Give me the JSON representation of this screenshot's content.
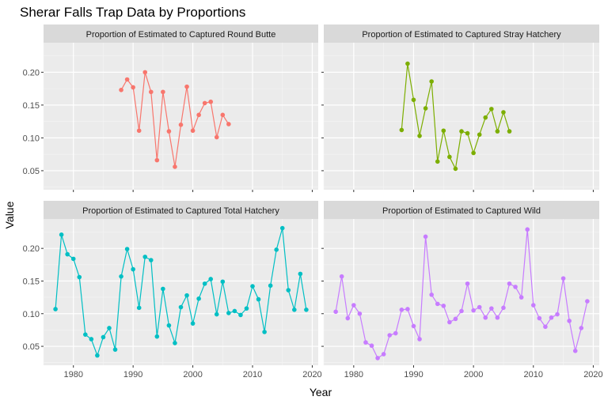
{
  "chart_data": {
    "type": "line",
    "title": "Sherar Falls Trap Data by Proportions",
    "xlabel": "Year",
    "ylabel": "Value",
    "xlim": [
      1975,
      2021
    ],
    "ylim": [
      0.021,
      0.245
    ],
    "x_ticks": [
      1980,
      1990,
      2000,
      2010,
      2020
    ],
    "y_ticks": [
      0.05,
      0.1,
      0.15,
      0.2
    ],
    "y_tick_labels": [
      "0.05",
      "0.10",
      "0.15",
      "0.20"
    ],
    "layout": "facet_wrap 2x2",
    "panel_background": "#ebebeb",
    "strip_background": "#d9d9d9",
    "grid": true,
    "series": [
      {
        "name": "Proportion of Estimated to Captured Round Butte",
        "color": "#F8766D",
        "x": [
          1988,
          1989,
          1990,
          1991,
          1992,
          1993,
          1994,
          1995,
          1996,
          1997,
          1998,
          1999,
          2000,
          2001,
          2002,
          2003,
          2004,
          2005,
          2006
        ],
        "values": [
          0.173,
          0.189,
          0.177,
          0.111,
          0.2,
          0.17,
          0.066,
          0.17,
          0.11,
          0.056,
          0.12,
          0.178,
          0.111,
          0.135,
          0.153,
          0.155,
          0.101,
          0.135,
          0.121
        ]
      },
      {
        "name": "Proportion of Estimated to Captured Stray Hatchery",
        "color": "#7CAE00",
        "x": [
          1988,
          1989,
          1990,
          1991,
          1992,
          1993,
          1994,
          1995,
          1996,
          1997,
          1998,
          1999,
          2000,
          2001,
          2002,
          2003,
          2004,
          2005,
          2006
        ],
        "values": [
          0.112,
          0.213,
          0.158,
          0.103,
          0.145,
          0.186,
          0.064,
          0.111,
          0.071,
          0.053,
          0.11,
          0.107,
          0.077,
          0.105,
          0.131,
          0.144,
          0.11,
          0.139,
          0.11
        ]
      },
      {
        "name": "Proportion of Estimated to Captured Total Hatchery",
        "color": "#00BFC4",
        "x": [
          1977,
          1978,
          1979,
          1980,
          1981,
          1982,
          1983,
          1984,
          1985,
          1986,
          1987,
          1988,
          1989,
          1990,
          1991,
          1992,
          1993,
          1994,
          1995,
          1996,
          1997,
          1998,
          1999,
          2000,
          2001,
          2002,
          2003,
          2004,
          2005,
          2006,
          2007,
          2008,
          2009,
          2010,
          2011,
          2012,
          2013,
          2014,
          2015,
          2016,
          2017,
          2018,
          2019
        ],
        "values": [
          0.107,
          0.221,
          0.191,
          0.184,
          0.156,
          0.068,
          0.061,
          0.036,
          0.064,
          0.078,
          0.045,
          0.157,
          0.199,
          0.168,
          0.109,
          0.187,
          0.182,
          0.065,
          0.138,
          0.082,
          0.055,
          0.11,
          0.128,
          0.085,
          0.123,
          0.146,
          0.153,
          0.099,
          0.149,
          0.101,
          0.104,
          0.098,
          0.108,
          0.142,
          0.122,
          0.072,
          0.143,
          0.198,
          0.231,
          0.136,
          0.106,
          0.161,
          0.106
        ]
      },
      {
        "name": "Proportion of Estimated to Captured Wild",
        "color": "#C77CFF",
        "x": [
          1977,
          1978,
          1979,
          1980,
          1981,
          1982,
          1983,
          1984,
          1985,
          1986,
          1987,
          1988,
          1989,
          1990,
          1991,
          1992,
          1993,
          1994,
          1995,
          1996,
          1997,
          1998,
          1999,
          2000,
          2001,
          2002,
          2003,
          2004,
          2005,
          2006,
          2007,
          2008,
          2009,
          2010,
          2011,
          2012,
          2013,
          2014,
          2015,
          2016,
          2017,
          2018,
          2019
        ],
        "values": [
          0.103,
          0.157,
          0.093,
          0.113,
          0.1,
          0.056,
          0.051,
          0.032,
          0.038,
          0.067,
          0.07,
          0.106,
          0.107,
          0.081,
          0.061,
          0.218,
          0.129,
          0.115,
          0.112,
          0.087,
          0.092,
          0.104,
          0.146,
          0.105,
          0.11,
          0.094,
          0.108,
          0.094,
          0.109,
          0.146,
          0.141,
          0.125,
          0.229,
          0.113,
          0.093,
          0.08,
          0.094,
          0.099,
          0.154,
          0.089,
          0.043,
          0.078,
          0.119
        ]
      }
    ]
  }
}
